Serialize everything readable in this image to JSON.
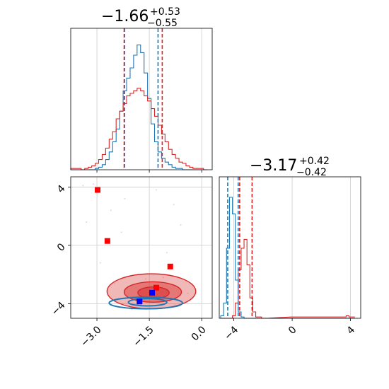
{
  "titles": {
    "p1": {
      "main": "−1.66",
      "plus": "+0.53",
      "minus": "−0.55"
    },
    "p2": {
      "main": "−3.17",
      "plus": "+0.42",
      "minus": "−0.42"
    }
  },
  "colors": {
    "blue": "#1f77b4",
    "red": "#d62728",
    "point_red": "#ff0000",
    "point_blue": "#0000ff",
    "grid": "#cccccc"
  },
  "chart_data": [
    {
      "type": "histogram",
      "panel": "marginal-p1",
      "xlim": [
        -3.75,
        0.3
      ],
      "x_ticks": [
        "−3.0",
        "−1.5",
        "0.0"
      ],
      "bins_x": [
        -3.7,
        -3.6,
        -3.5,
        -3.4,
        -3.3,
        -3.2,
        -3.1,
        -3.0,
        -2.9,
        -2.8,
        -2.7,
        -2.6,
        -2.5,
        -2.4,
        -2.3,
        -2.2,
        -2.1,
        -2.0,
        -1.9,
        -1.8,
        -1.7,
        -1.6,
        -1.5,
        -1.4,
        -1.3,
        -1.2,
        -1.1,
        -1.0,
        -0.9,
        -0.8,
        -0.7,
        -0.6,
        -0.5,
        -0.4,
        -0.3,
        -0.2,
        -0.1,
        0.0,
        0.1
      ],
      "series": [
        {
          "name": "",
          "color": "blue",
          "values": [
            0,
            0,
            0,
            0,
            0,
            0,
            0,
            0.01,
            0.02,
            0.04,
            0.08,
            0.14,
            0.22,
            0.32,
            0.46,
            0.62,
            0.72,
            0.8,
            0.9,
            0.98,
            0.92,
            0.76,
            0.56,
            0.36,
            0.22,
            0.14,
            0.09,
            0.06,
            0.04,
            0.02,
            0.01,
            0.01,
            0,
            0,
            0,
            0,
            0,
            0,
            0
          ]
        },
        {
          "name": "",
          "color": "red",
          "values": [
            0.01,
            0.01,
            0.01,
            0,
            0.01,
            0.02,
            0.03,
            0.05,
            0.08,
            0.12,
            0.17,
            0.24,
            0.3,
            0.4,
            0.46,
            0.52,
            0.58,
            0.6,
            0.62,
            0.64,
            0.62,
            0.58,
            0.54,
            0.48,
            0.42,
            0.35,
            0.28,
            0.22,
            0.16,
            0.12,
            0.09,
            0.06,
            0.05,
            0.03,
            0.02,
            0.01,
            0.01,
            0.01,
            0
          ]
        }
      ],
      "vlines": [
        {
          "x": -2.21,
          "color": "blue"
        },
        {
          "x": -1.25,
          "color": "blue"
        },
        {
          "x": -2.22,
          "color": "red"
        },
        {
          "x": -1.13,
          "color": "red"
        }
      ]
    },
    {
      "type": "histogram",
      "panel": "marginal-p2",
      "xlim": [
        -5.0,
        4.7
      ],
      "x_ticks": [
        "−4",
        "0",
        "4"
      ],
      "bins_x": [
        -4.8,
        -4.6,
        -4.4,
        -4.2,
        -4.0,
        -3.8,
        -3.6,
        -3.4,
        -3.2,
        -3.0,
        -2.8,
        -2.6,
        -2.4,
        -2.2,
        -2.0,
        -1.8,
        0.0,
        0.2,
        3.6,
        3.8,
        4.0,
        4.2
      ],
      "series": [
        {
          "name": "",
          "color": "blue",
          "values": [
            0.02,
            0.12,
            0.55,
            0.95,
            0.82,
            0.3,
            0.05,
            0.01,
            0,
            0,
            0,
            0,
            0,
            0,
            0,
            0,
            0,
            0,
            0,
            0,
            0,
            0
          ]
        },
        {
          "name": "",
          "color": "red",
          "values": [
            0,
            0,
            0,
            0,
            0.02,
            0.12,
            0.38,
            0.55,
            0.62,
            0.42,
            0.16,
            0.05,
            0.01,
            0.01,
            0,
            0,
            0.01,
            0.01,
            0.01,
            0.02,
            0.01,
            0.01
          ]
        }
      ],
      "vlines": [
        {
          "x": -4.42,
          "color": "blue"
        },
        {
          "x": -3.7,
          "color": "blue"
        },
        {
          "x": -3.6,
          "color": "red"
        },
        {
          "x": -2.75,
          "color": "red"
        }
      ]
    },
    {
      "type": "scatter",
      "panel": "joint-p1-p2",
      "xlim": [
        -3.75,
        0.3
      ],
      "ylim": [
        -5.0,
        4.7
      ],
      "x_ticks": [
        "−3.0",
        "−1.5",
        "0.0"
      ],
      "y_ticks": [
        "−4",
        "0",
        "4"
      ],
      "red_points": [
        [
          -2.98,
          3.8
        ],
        [
          -2.7,
          0.3
        ],
        [
          -0.9,
          -1.45
        ],
        [
          -1.3,
          -2.9
        ]
      ],
      "blue_points": [
        [
          -1.78,
          -3.85
        ],
        [
          -1.42,
          -3.25
        ]
      ],
      "faint_points": [
        [
          -3.1,
          4.2
        ],
        [
          -2.6,
          2.4
        ],
        [
          -2.3,
          0.9
        ],
        [
          -1.3,
          3.8
        ],
        [
          -1.0,
          -0.5
        ],
        [
          -2.9,
          -1.2
        ],
        [
          -3.3,
          1.6
        ],
        [
          -0.6,
          1.4
        ],
        [
          -2.2,
          3.2
        ],
        [
          -1.6,
          -2.3
        ],
        [
          -2.5,
          -2.6
        ],
        [
          -1.1,
          -2.2
        ],
        [
          -0.4,
          -3.3
        ],
        [
          -3.4,
          4.1
        ],
        [
          -0.8,
          2.8
        ],
        [
          -2.0,
          -4.4
        ]
      ],
      "red_contours": [
        {
          "cx": -1.44,
          "cy": -3.15,
          "rx": 1.27,
          "ry": 1.2,
          "fill": 0.55
        },
        {
          "cx": -1.4,
          "cy": -3.2,
          "rx": 0.82,
          "ry": 0.7,
          "fill": 0.75
        },
        {
          "cx": -1.38,
          "cy": -3.25,
          "rx": 0.45,
          "ry": 0.4,
          "fill": 0.85
        }
      ],
      "blue_contours": [
        {
          "cx": -1.6,
          "cy": -3.95,
          "rx": 1.05,
          "ry": 0.4
        },
        {
          "cx": -1.55,
          "cy": -3.9,
          "rx": 0.55,
          "ry": 0.25
        }
      ]
    }
  ]
}
